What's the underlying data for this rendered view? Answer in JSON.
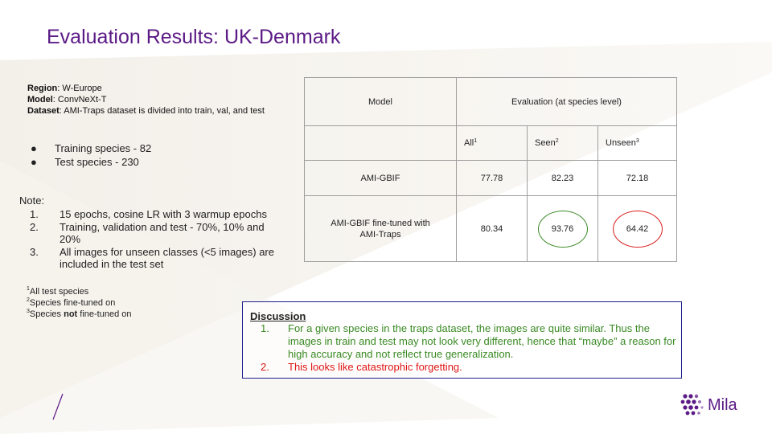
{
  "slide": {
    "title": "Evaluation Results: UK-Denmark"
  },
  "meta": {
    "region_label": "Region",
    "region_value": ": W-Europe",
    "model_label": "Model",
    "model_value": ": ConvNeXt-T",
    "dataset_label": "Dataset",
    "dataset_value": ": AMI-Traps dataset is divided into train, val, and test"
  },
  "bullets": [
    {
      "dot": "●",
      "text": "Training species - 82"
    },
    {
      "dot": "●",
      "text": "Test species - 230"
    }
  ],
  "note": {
    "heading": "Note:",
    "items": [
      {
        "num": "1.",
        "text": "15 epochs, cosine LR with 3 warmup epochs"
      },
      {
        "num": "2.",
        "text": "Training, validation and test - 70%, 10% and 20%"
      },
      {
        "num": "3.",
        "text": "All images for unseen classes (<5 images) are included in the test set"
      }
    ]
  },
  "footnotes": [
    {
      "mark": "1",
      "before": "All test species",
      "bold": "",
      "after": ""
    },
    {
      "mark": "2",
      "before": "Species fine-tuned on",
      "bold": "",
      "after": ""
    },
    {
      "mark": "3",
      "before": "Species ",
      "bold": "not",
      "after": " fine-tuned on"
    }
  ],
  "table": {
    "header_model": "Model",
    "header_eval": "Evaluation (at species level)",
    "sub": [
      {
        "label": "All",
        "mark": "1"
      },
      {
        "label": "Seen",
        "mark": "2"
      },
      {
        "label": "Unseen",
        "mark": "3"
      }
    ],
    "rows": [
      {
        "model": "AMI-GBIF",
        "all": "77.78",
        "seen": "82.23",
        "unseen": "72.18"
      },
      {
        "model": "AMI-GBIF fine-tuned with AMI-Traps",
        "all": "80.34",
        "seen": "93.76",
        "unseen": "64.42"
      }
    ]
  },
  "discussion": {
    "title": "Discussion",
    "items": [
      {
        "num": "1.",
        "text": "For a given species in the traps dataset, the images are quite similar. Thus the images in train and test may not look very different, hence that “maybe” a reason for high accuracy and not reflect true generalization."
      },
      {
        "num": "2.",
        "text": "This looks like catastrophic forgetting."
      }
    ]
  },
  "logo": {
    "text": "Mila",
    "icon": "mila-dots-icon"
  },
  "colors": {
    "title": "#5b1a86",
    "green": "#3a8a24",
    "red": "#e01616",
    "border": "#1e1e8c"
  }
}
